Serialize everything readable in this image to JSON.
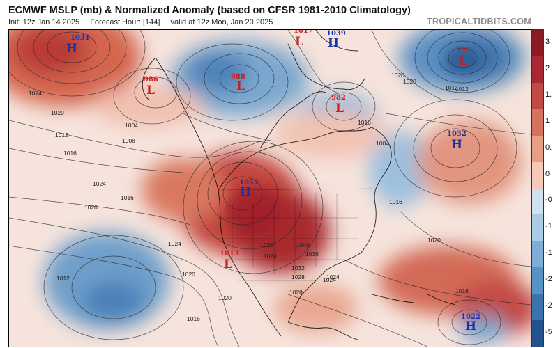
{
  "header": {
    "title": "ECMWF MSLP (mb) & Normalized Anomaly (based on CFSR 1981-2010 Climatology)",
    "init": "Init: 12z Jan 14 2025",
    "forecast_hour": "Forecast Hour: [144]",
    "valid": "valid at 12z Mon, Jan 20 2025",
    "brand": "TROPICALTIDBITS.COM"
  },
  "colorbar": {
    "labels": [
      "3",
      "2",
      "1.",
      "1",
      "0.",
      "0",
      "-0",
      "-1",
      "-1",
      "-2",
      "-2",
      "-5"
    ],
    "colors": [
      "#8b1a24",
      "#a82832",
      "#c24a45",
      "#d6735f",
      "#e79d86",
      "#f4c9b8",
      "#cfe1ee",
      "#a9cbe4",
      "#7eaed7",
      "#5692c5",
      "#3a74ae",
      "#22528d"
    ]
  },
  "pressure_centers": [
    {
      "type": "H",
      "value": "1031",
      "color": "#1a2fa8"
    },
    {
      "type": "L",
      "value": "986",
      "color": "#c81e1e"
    },
    {
      "type": "L",
      "value": "988",
      "color": "#c81e1e"
    },
    {
      "type": "L",
      "value": "1017",
      "color": "#c81e1e"
    },
    {
      "type": "H",
      "value": "1039",
      "color": "#1a2fa8"
    },
    {
      "type": "L",
      "value": "982",
      "color": "#c81e1e"
    },
    {
      "type": "L",
      "value": "990",
      "color": "#c81e1e"
    },
    {
      "type": "H",
      "value": "1032",
      "color": "#1a2fa8"
    },
    {
      "type": "H",
      "value": "1057",
      "color": "#1a2fa8"
    },
    {
      "type": "L",
      "value": "1013",
      "color": "#c81e1e"
    },
    {
      "type": "H",
      "value": "1022",
      "color": "#1a2fa8"
    }
  ],
  "isobar_labels": [
    "1024",
    "1020",
    "1016",
    "1012",
    "1008",
    "1004",
    "1024",
    "1020",
    "1016",
    "1024",
    "1020",
    "1012",
    "1016",
    "1020",
    "1024",
    "1028",
    "1032",
    "1040",
    "1036",
    "1024",
    "1020",
    "1016",
    "1016",
    "1020",
    "1012",
    "1004",
    "1020",
    "1028",
    "1024",
    "1020",
    "1016",
    "1012"
  ]
}
